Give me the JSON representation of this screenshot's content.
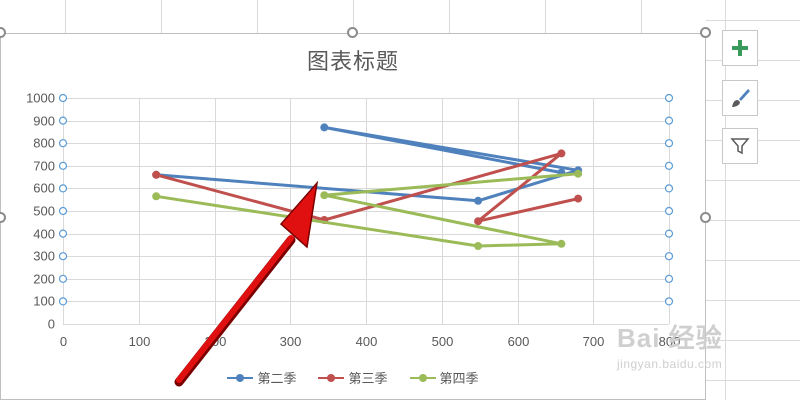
{
  "toolbar": {
    "add_element_icon": "plus-icon",
    "style_icon": "paintbrush-icon",
    "filter_icon": "funnel-icon"
  },
  "watermark": {
    "main": "Bai 经验",
    "sub": "jingyan.baidu.com"
  },
  "colors": {
    "series1": "#4f81bd",
    "series2": "#c0504d",
    "series3": "#9bbb59",
    "arrow": "#e01010"
  },
  "chart_data": {
    "type": "scatter",
    "title": "图表标题",
    "xlabel": "",
    "ylabel": "",
    "xlim": [
      0,
      800
    ],
    "ylim": [
      0,
      1000
    ],
    "xticks": [
      0,
      100,
      200,
      300,
      400,
      500,
      600,
      700,
      800
    ],
    "xtick_labels": [
      "0",
      "100",
      "200",
      "300",
      "400",
      "500",
      "600",
      "700",
      "800"
    ],
    "yticks": [
      0,
      100,
      200,
      300,
      400,
      500,
      600,
      700,
      800,
      900,
      1000
    ],
    "ytick_labels": [
      "0",
      "100",
      "200",
      "300",
      "400",
      "500",
      "600",
      "700",
      "800",
      "900",
      "1000"
    ],
    "grid": true,
    "legend_position": "bottom",
    "series": [
      {
        "name": "第二季",
        "color": "#4f81bd",
        "points": [
          [
            123,
            660
          ],
          [
            548,
            545
          ],
          [
            680,
            680
          ],
          [
            345,
            870
          ],
          [
            658,
            670
          ]
        ]
      },
      {
        "name": "第三季",
        "color": "#c0504d",
        "points": [
          [
            123,
            660
          ],
          [
            345,
            460
          ],
          [
            658,
            755
          ],
          [
            548,
            455
          ],
          [
            680,
            555
          ]
        ]
      },
      {
        "name": "第四季",
        "color": "#9bbb59",
        "points": [
          [
            123,
            565
          ],
          [
            548,
            345
          ],
          [
            658,
            355
          ],
          [
            345,
            570
          ],
          [
            680,
            665
          ]
        ]
      }
    ]
  }
}
